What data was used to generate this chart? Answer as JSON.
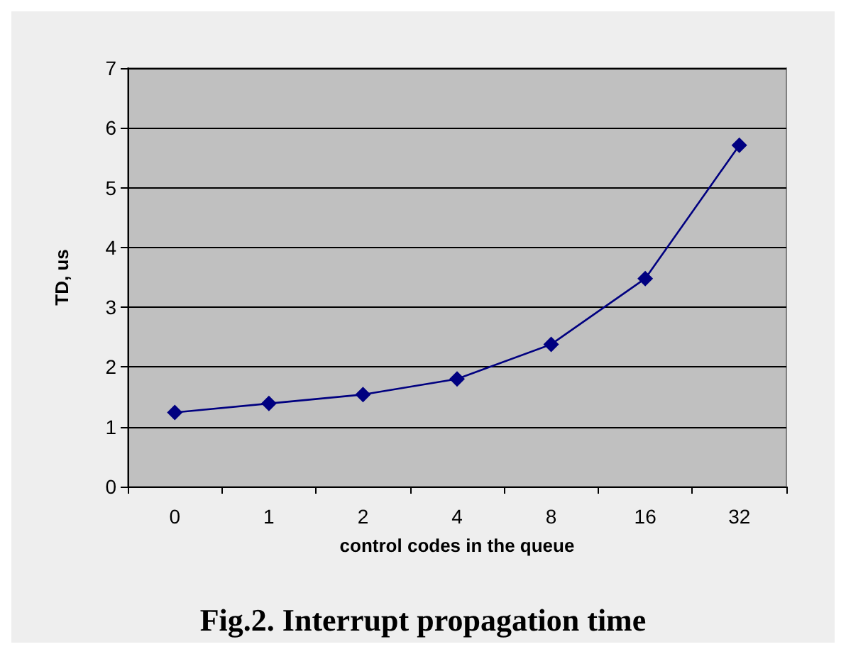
{
  "chart_data": {
    "type": "line",
    "title": "Fig.2. Interrupt propagation time",
    "xlabel": "control codes in the queue",
    "ylabel": "TD, us",
    "categories": [
      "0",
      "1",
      "2",
      "4",
      "8",
      "16",
      "32"
    ],
    "series": [
      {
        "color": "#000080",
        "values": [
          1.24,
          1.39,
          1.54,
          1.8,
          2.38,
          3.48,
          5.71
        ]
      }
    ],
    "ylim": [
      0,
      7
    ],
    "yticks": [
      0,
      1,
      2,
      3,
      4,
      5,
      6,
      7
    ],
    "grid": "y",
    "marker": "diamond",
    "line_style": "solid"
  }
}
